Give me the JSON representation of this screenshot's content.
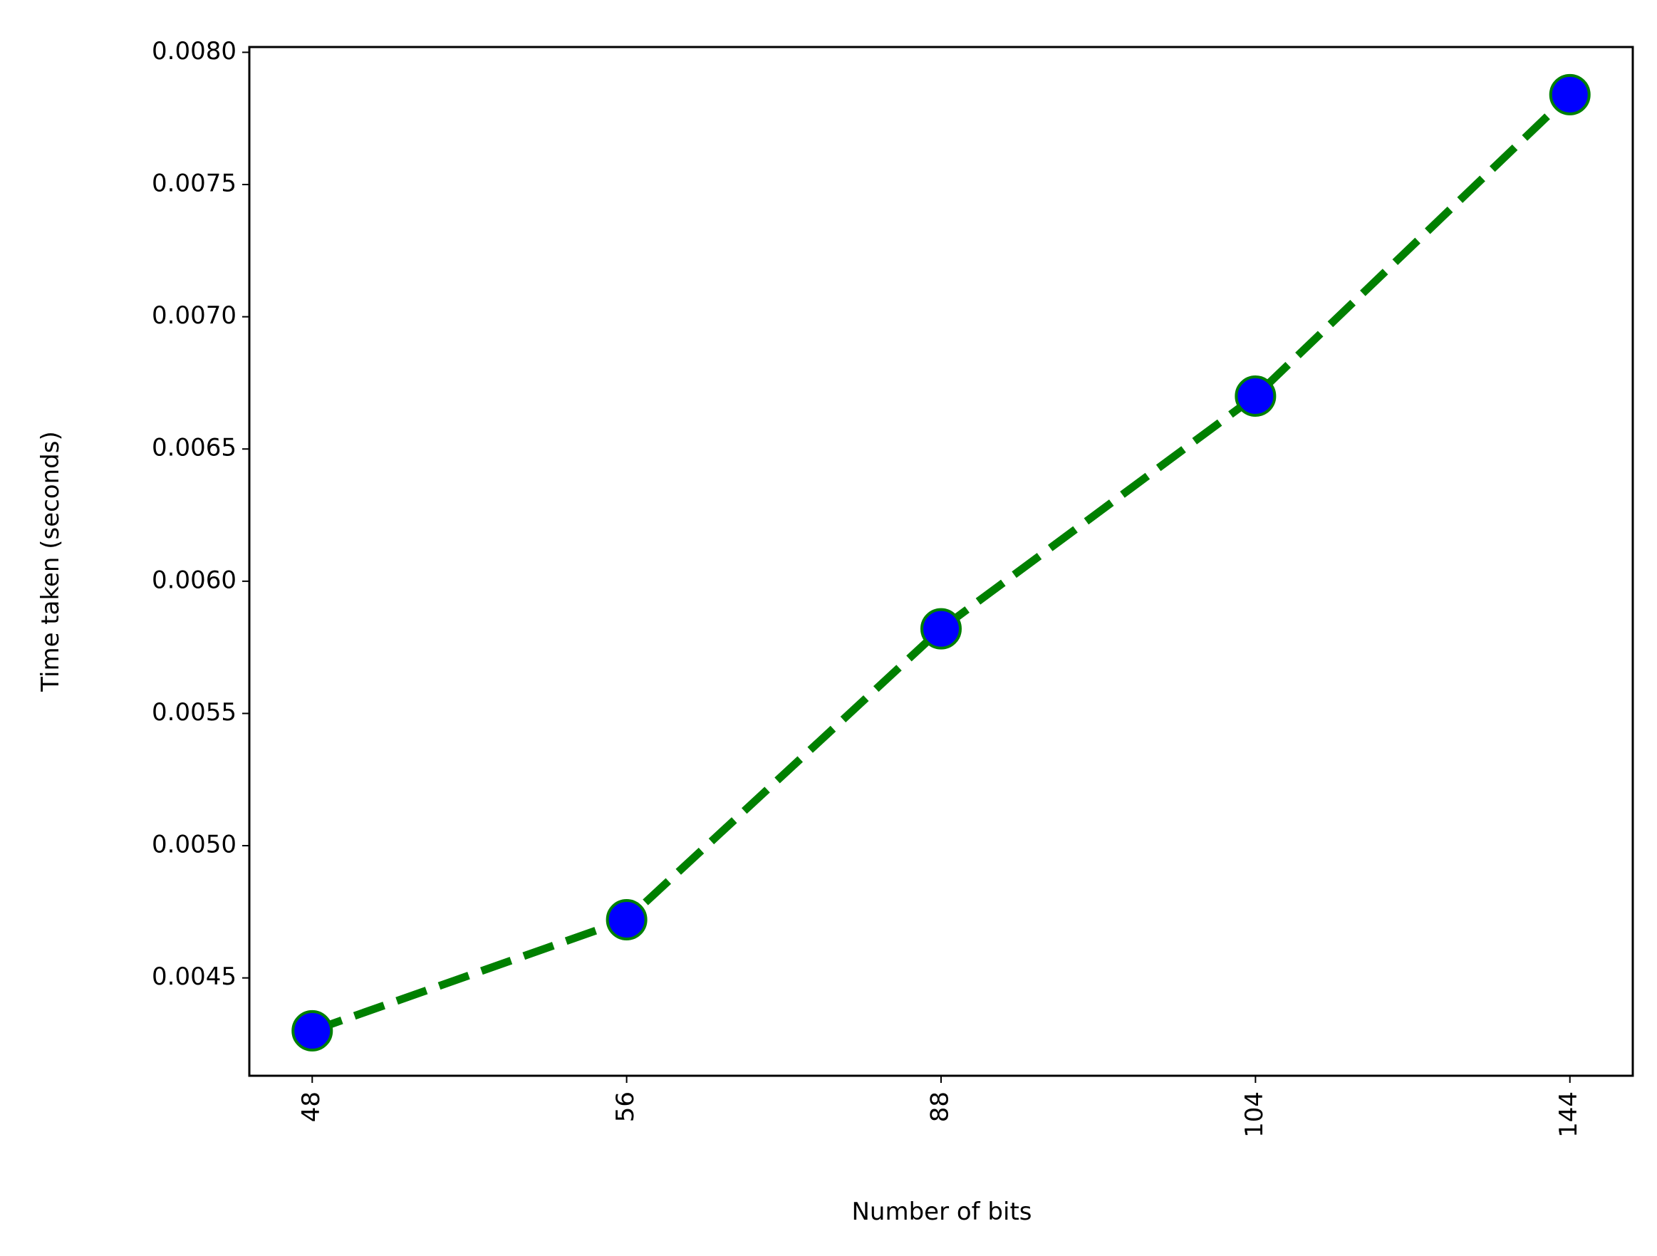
{
  "chart_data": {
    "type": "line",
    "x_label": "Number of bits",
    "y_label": "Time taken (seconds)",
    "categories": [
      "48",
      "56",
      "88",
      "104",
      "144"
    ],
    "series": [
      {
        "color": "#008000",
        "marker_color": "#0000ff",
        "values": [
          0.0043,
          0.00472,
          0.00582,
          0.0067,
          0.00784
        ]
      }
    ],
    "ylim": [
      0.00413,
      0.00802
    ],
    "yticks": [
      0.0045,
      {
        "value": 0.005,
        "label": "0.0050"
      },
      0.0055,
      {
        "value": 0.006,
        "label": "0.0060"
      },
      0.0065,
      {
        "value": 0.007,
        "label": "0.0070"
      },
      0.0075,
      {
        "value": 0.008,
        "label": "0.0080"
      }
    ],
    "grid": false
  }
}
